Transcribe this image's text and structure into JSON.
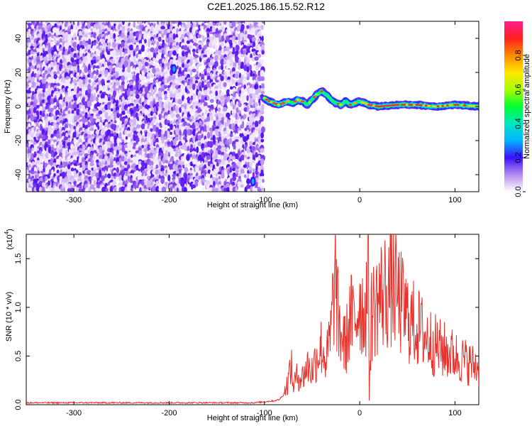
{
  "title": "C2E1.2025.186.15.52.R12",
  "chart_data": [
    {
      "type": "heatmap",
      "xlabel": "Height of straight line (km)",
      "ylabel": "Frequency (Hz)",
      "xlim": [
        -350,
        125
      ],
      "ylim": [
        -50,
        50
      ],
      "xticks": [
        -300,
        -200,
        -100,
        0,
        100
      ],
      "yticks": [
        -40,
        -20,
        0,
        20,
        40
      ],
      "grid": false,
      "noise_region_x": [
        -350,
        -100
      ],
      "ridge": {
        "x": [
          -100,
          -95,
          -90,
          -85,
          -80,
          -75,
          -70,
          -65,
          -60,
          -55,
          -50,
          -45,
          -40,
          -35,
          -30,
          -25,
          -20,
          -15,
          -10,
          -5,
          0,
          10,
          20,
          40,
          60,
          80,
          100,
          125
        ],
        "freq": [
          5,
          3,
          2,
          1,
          2,
          3,
          2,
          4,
          3,
          1,
          4,
          7,
          9,
          7,
          4,
          2,
          1,
          3,
          1,
          2,
          3,
          1,
          0,
          1,
          1,
          0,
          1,
          0
        ]
      },
      "colorbar": {
        "label": "Normalized spectral amplitude",
        "range": [
          0.0,
          1.0
        ],
        "ticks": [
          0.0,
          0.2,
          0.4,
          0.6,
          0.8
        ],
        "tick_labels": [
          "0.0",
          "0.2",
          "0.4",
          "0.6",
          "0.8"
        ]
      }
    },
    {
      "type": "line",
      "xlabel": "Height of straight line (km)",
      "ylabel": "SNR (10 * v/v)",
      "yscale_label": "(x10",
      "yscale_exp": "4",
      "xlim": [
        -350,
        125
      ],
      "ylim": [
        0.0,
        1.75
      ],
      "xticks": [
        -300,
        -200,
        -100,
        0,
        100
      ],
      "yticks": [
        0.0,
        0.5,
        1.0,
        1.5
      ],
      "ytick_labels": [
        "0.0",
        "0.5",
        "1.0",
        "1.5"
      ],
      "grid": false,
      "color": "#e8312b",
      "series": [
        {
          "x": [
            -350,
            -300,
            -250,
            -200,
            -150,
            -110,
            -100,
            -90,
            -85,
            -80,
            -75,
            -72,
            -70,
            -65,
            -60,
            -55,
            -50,
            -45,
            -40,
            -35,
            -30,
            -26,
            -22,
            -15,
            -10,
            -5,
            0,
            5,
            8,
            9,
            10,
            12,
            15,
            20,
            25,
            30,
            35,
            40,
            45,
            50,
            55,
            60,
            70,
            80,
            90,
            100,
            110,
            125
          ],
          "values": [
            0.02,
            0.02,
            0.02,
            0.02,
            0.02,
            0.02,
            0.03,
            0.04,
            0.05,
            0.1,
            0.25,
            0.42,
            0.2,
            0.3,
            0.28,
            0.4,
            0.35,
            0.5,
            0.6,
            0.45,
            0.75,
            1.35,
            0.8,
            0.6,
            0.9,
            0.85,
            1.1,
            0.9,
            1.2,
            1.75,
            0.08,
            0.9,
            1.0,
            1.1,
            1.15,
            1.2,
            1.25,
            1.1,
            1.0,
            0.9,
            0.85,
            0.8,
            0.7,
            0.6,
            0.55,
            0.5,
            0.45,
            0.38
          ]
        }
      ]
    }
  ]
}
